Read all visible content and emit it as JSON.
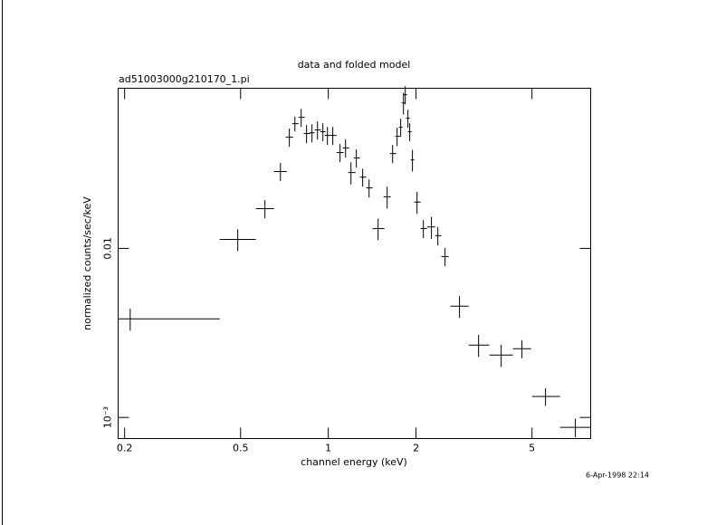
{
  "chart_data": {
    "type": "scatter",
    "title": "data and folded model",
    "subtitle": "ad51003000g210170_1.pi",
    "x_label": "channel energy (keV)",
    "y_label": "normalized counts/sec/keV",
    "timestamp": "6-Apr-1998 22:14",
    "xscale": "log",
    "yscale": "log",
    "color": "#000000",
    "xlim": [
      0.19,
      7.95
    ],
    "ylim": [
      0.00075,
      0.0886
    ],
    "xticks": [
      0.2,
      0.5,
      1,
      2,
      5
    ],
    "yticks": [
      {
        "value": 0.001,
        "label": "10⁻³"
      },
      0.01
    ],
    "x": [
      0.209,
      0.489,
      0.606,
      0.685,
      0.735,
      0.768,
      0.807,
      0.842,
      0.879,
      0.918,
      0.958,
      0.993,
      1.036,
      1.097,
      1.146,
      1.196,
      1.248,
      1.312,
      1.38,
      1.482,
      1.592,
      1.662,
      1.722,
      1.772,
      1.811,
      1.837,
      1.876,
      1.903,
      1.944,
      2.016,
      2.119,
      2.259,
      2.376,
      2.515,
      2.82,
      3.278,
      3.92,
      4.619,
      5.564,
      7.044
    ],
    "x_low": [
      0.19,
      0.424,
      0.564,
      0.651,
      0.714,
      0.751,
      0.79,
      0.824,
      0.861,
      0.898,
      0.938,
      0.972,
      1.014,
      1.067,
      1.121,
      1.17,
      1.222,
      1.284,
      1.35,
      1.419,
      1.547,
      1.627,
      1.698,
      1.747,
      1.785,
      1.811,
      1.85,
      1.876,
      1.917,
      1.972,
      2.074,
      2.181,
      2.326,
      2.444,
      2.626,
      3.03,
      3.571,
      4.301,
      4.999,
      6.237
    ],
    "x_high": [
      0.424,
      0.564,
      0.651,
      0.72,
      0.757,
      0.79,
      0.83,
      0.867,
      0.898,
      0.944,
      0.979,
      1.014,
      1.067,
      1.129,
      1.179,
      1.24,
      1.284,
      1.35,
      1.419,
      1.558,
      1.638,
      1.71,
      1.76,
      1.797,
      1.837,
      1.863,
      1.903,
      1.931,
      1.972,
      2.074,
      2.181,
      2.326,
      2.444,
      2.588,
      3.03,
      3.571,
      4.301,
      4.963,
      6.237,
      7.954
    ],
    "values": [
      0.00383,
      0.01131,
      0.01718,
      0.0285,
      0.0455,
      0.0547,
      0.0596,
      0.0478,
      0.0483,
      0.0502,
      0.049,
      0.0466,
      0.0466,
      0.0369,
      0.0393,
      0.0281,
      0.0343,
      0.0264,
      0.0228,
      0.0131,
      0.0202,
      0.0364,
      0.0461,
      0.0521,
      0.0726,
      0.0811,
      0.0589,
      0.049,
      0.0334,
      0.0188,
      0.0131,
      0.0134,
      0.0119,
      0.00895,
      0.00455,
      0.00268,
      0.00234,
      0.00255,
      0.00133,
      0.000873
    ],
    "y_err": [
      0.00057,
      0.00167,
      0.00211,
      0.0035,
      0.0056,
      0.0055,
      0.0073,
      0.0059,
      0.0059,
      0.0062,
      0.006,
      0.0057,
      0.0057,
      0.0045,
      0.0048,
      0.0042,
      0.0042,
      0.0032,
      0.0028,
      0.0019,
      0.003,
      0.0045,
      0.0057,
      0.0064,
      0.0107,
      0.01,
      0.0072,
      0.006,
      0.0049,
      0.0028,
      0.0016,
      0.002,
      0.0015,
      0.0011,
      0.00067,
      0.0004,
      0.00035,
      0.00031,
      0.00016,
      0.00011
    ]
  }
}
